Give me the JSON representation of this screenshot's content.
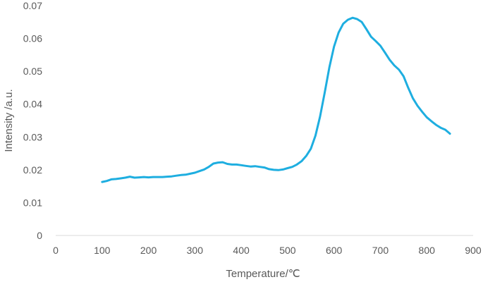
{
  "chart_data": {
    "type": "line",
    "title": "",
    "xlabel": "Temperature/℃",
    "ylabel": "Intensity /a.u.",
    "xlim": [
      0,
      900
    ],
    "ylim": [
      0,
      0.07
    ],
    "grid": false,
    "legend": "none",
    "x_ticks": [
      "0",
      "100",
      "200",
      "300",
      "400",
      "500",
      "600",
      "700",
      "800",
      "900"
    ],
    "y_ticks": [
      "0",
      "0.01",
      "0.02",
      "0.03",
      "0.04",
      "0.05",
      "0.06",
      "0.07"
    ],
    "line_color": "#1eaee0",
    "series": [
      {
        "x": [
          100,
          110,
          120,
          130,
          140,
          150,
          160,
          170,
          180,
          190,
          200,
          210,
          220,
          230,
          240,
          250,
          260,
          270,
          280,
          290,
          300,
          310,
          320,
          330,
          340,
          350,
          360,
          370,
          380,
          390,
          400,
          410,
          420,
          430,
          440,
          450,
          460,
          470,
          480,
          490,
          500,
          510,
          520,
          530,
          540,
          550,
          560,
          570,
          580,
          590,
          600,
          610,
          620,
          630,
          640,
          650,
          660,
          670,
          680,
          690,
          700,
          710,
          720,
          730,
          740,
          750,
          760,
          770,
          780,
          790,
          800,
          810,
          820,
          830,
          840,
          850
        ],
        "y": [
          0.0163,
          0.0166,
          0.0171,
          0.0172,
          0.0174,
          0.0176,
          0.0179,
          0.0176,
          0.0177,
          0.0178,
          0.0177,
          0.0178,
          0.0178,
          0.0178,
          0.0179,
          0.018,
          0.0182,
          0.0184,
          0.0185,
          0.0188,
          0.0191,
          0.0196,
          0.0201,
          0.0209,
          0.0219,
          0.0222,
          0.0223,
          0.0218,
          0.0216,
          0.0216,
          0.0214,
          0.0212,
          0.021,
          0.0211,
          0.0209,
          0.0207,
          0.0202,
          0.02,
          0.0199,
          0.0201,
          0.0205,
          0.0209,
          0.0216,
          0.0226,
          0.0242,
          0.0264,
          0.0304,
          0.0362,
          0.0435,
          0.0512,
          0.0575,
          0.0618,
          0.0645,
          0.0657,
          0.0663,
          0.0659,
          0.065,
          0.0628,
          0.0605,
          0.0592,
          0.0578,
          0.0557,
          0.0535,
          0.0518,
          0.0505,
          0.0485,
          0.045,
          0.0418,
          0.0395,
          0.0377,
          0.036,
          0.0348,
          0.0337,
          0.0328,
          0.0322,
          0.031
        ]
      }
    ]
  }
}
